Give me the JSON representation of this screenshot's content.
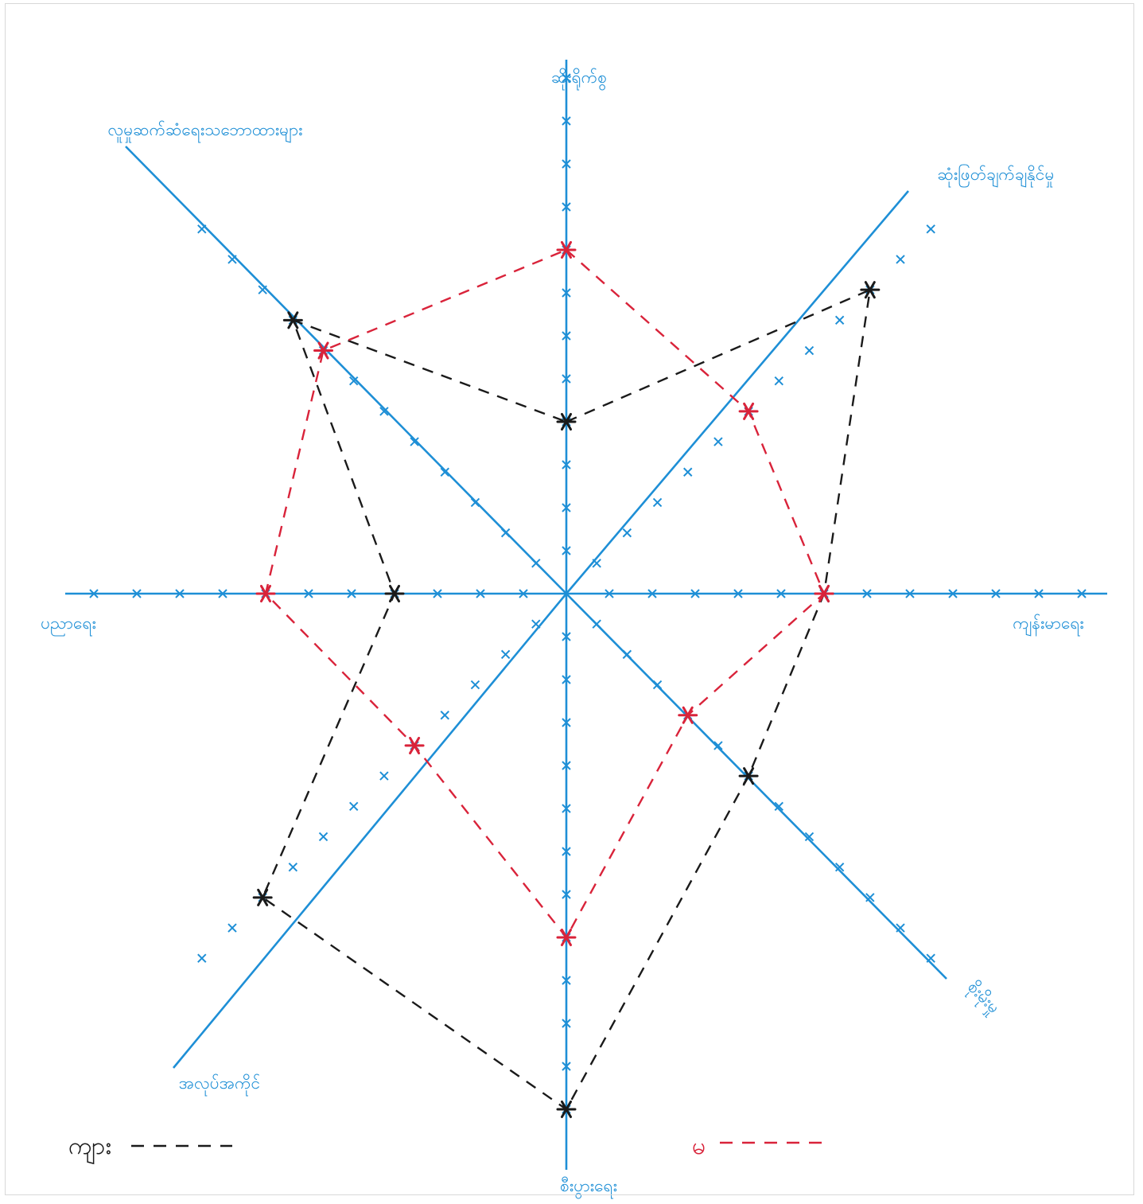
{
  "chart_data": {
    "type": "radar",
    "title": "",
    "scale": {
      "min": 0,
      "max": 12,
      "tick_step": 1
    },
    "axes": [
      {
        "key": "n",
        "label": "ဆိုးရိုက်စွ"
      },
      {
        "key": "ne",
        "label": "ဆုံးဖြတ်ချက်ချနိုင်မှု"
      },
      {
        "key": "e",
        "label": "ကျန်းမာရေး"
      },
      {
        "key": "se",
        "label": "စိုးမိုးမှု"
      },
      {
        "key": "s",
        "label": "စီးပွားရေး"
      },
      {
        "key": "sw",
        "label": "အလုပ်အကိုင်"
      },
      {
        "key": "w",
        "label": "ပညာရေး"
      },
      {
        "key": "nw",
        "label": "လူမှုဆက်ဆံရေးသဘောထားများ"
      }
    ],
    "series": [
      {
        "name": "ကျား",
        "color": "#1a1a1a",
        "style": "dashed",
        "values": [
          4,
          10,
          6,
          6,
          12,
          10,
          4,
          9
        ]
      },
      {
        "name": "မ",
        "color": "#d9233a",
        "style": "dashed",
        "values": [
          8,
          6,
          6,
          4,
          8,
          5,
          7,
          8
        ]
      }
    ],
    "axis_color": "#1e8fd6",
    "legend_position": "bottom"
  }
}
